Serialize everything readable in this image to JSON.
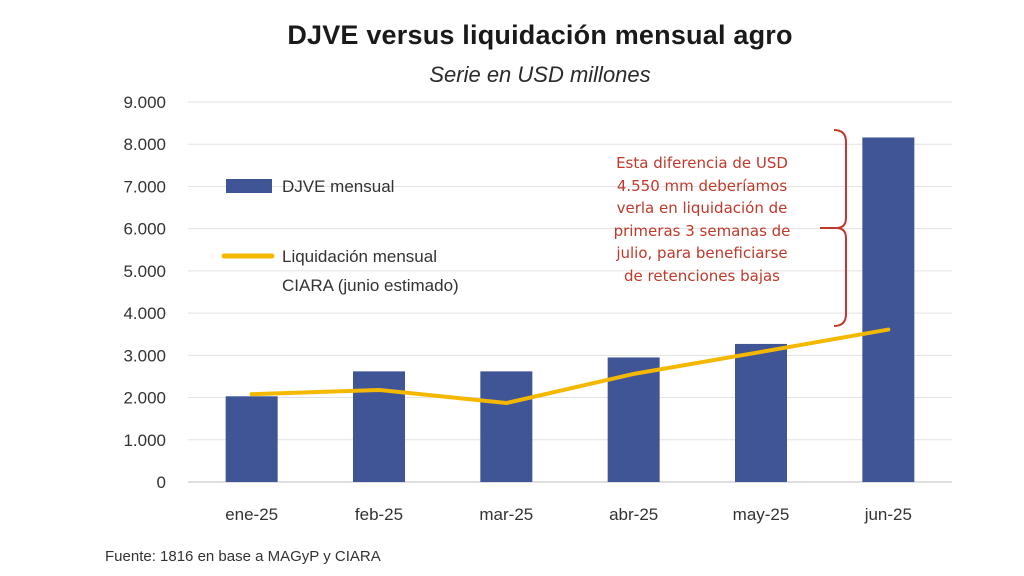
{
  "chart_data": {
    "type": "bar",
    "title": "DJVE versus liquidación mensual agro",
    "subtitle": "Serie en USD millones",
    "categories": [
      "ene-25",
      "feb-25",
      "mar-25",
      "abr-25",
      "may-25",
      "jun-25"
    ],
    "series": [
      {
        "name": "DJVE mensual",
        "type": "bar",
        "color": "#3f5596",
        "values": [
          2030,
          2620,
          2620,
          2950,
          3270,
          8160
        ]
      },
      {
        "name": "Liquidación mensual CIARA (junio estimado)",
        "type": "line",
        "color": "#f5b800",
        "values": [
          2080,
          2180,
          1870,
          2560,
          3080,
          3610
        ]
      }
    ],
    "ylim": [
      0,
      9000
    ],
    "yticks": [
      "0",
      "1.000",
      "2.000",
      "3.000",
      "4.000",
      "5.000",
      "6.000",
      "7.000",
      "8.000",
      "9.000"
    ],
    "grid": true,
    "legend_position": "left",
    "legend": [
      {
        "line1": "DJVE mensual",
        "line2": ""
      },
      {
        "line1": "Liquidación mensual",
        "line2": "CIARA (junio estimado)"
      }
    ],
    "annotation": {
      "lines": [
        "Esta diferencia de USD",
        "4.550 mm deberíamos",
        "verla en liquidación de",
        "primeras 3 semanas de",
        "julio, para beneficiarse",
        "de retenciones bajas"
      ],
      "color": "#c0392b"
    }
  },
  "source": "Fuente: 1816 en base a MAGyP y CIARA"
}
